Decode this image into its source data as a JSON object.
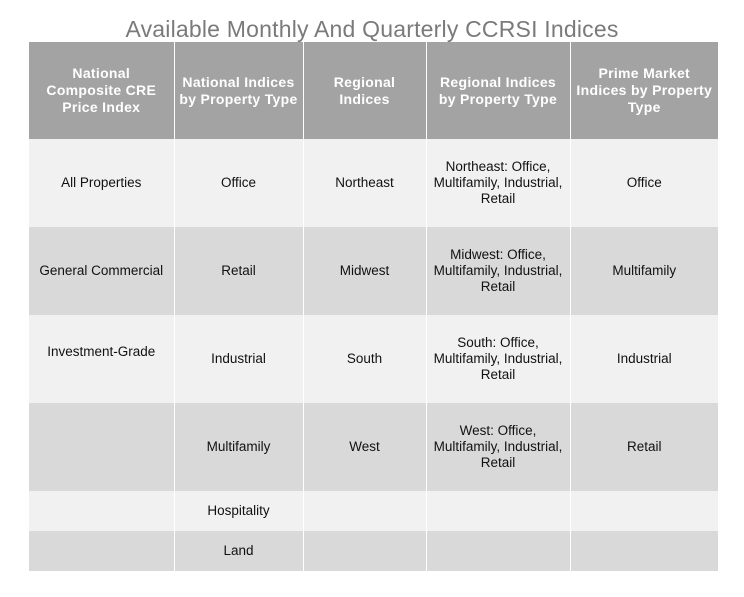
{
  "title": "Available Monthly And Quarterly CCRSI Indices",
  "table": {
    "headers": [
      "National Composite CRE Price Index",
      "National Indices by Property Type",
      "Regional Indices",
      "Regional Indices by Property Type",
      "Prime Market Indices by Property Type"
    ],
    "rows": [
      [
        "All Properties",
        "Office",
        "Northeast",
        "Northeast: Office, Multifamily, Industrial, Retail",
        "Office"
      ],
      [
        "General Commercial",
        "Retail",
        "Midwest",
        "Midwest: Office, Multifamily, Industrial, Retail",
        "Multifamily"
      ],
      [
        "Investment-Grade",
        "Industrial",
        "South",
        "South: Office, Multifamily, Industrial, Retail",
        "Industrial"
      ],
      [
        "",
        "Multifamily",
        "West",
        "West: Office, Multifamily, Industrial, Retail",
        "Retail"
      ],
      [
        "",
        "Hospitality",
        "",
        "",
        ""
      ],
      [
        "",
        "Land",
        "",
        "",
        ""
      ]
    ]
  },
  "colors": {
    "title": "#7a7a7a",
    "header_bg": "#a3a3a3",
    "row_light": "#f1f1f1",
    "row_dark": "#d9d9d9"
  }
}
